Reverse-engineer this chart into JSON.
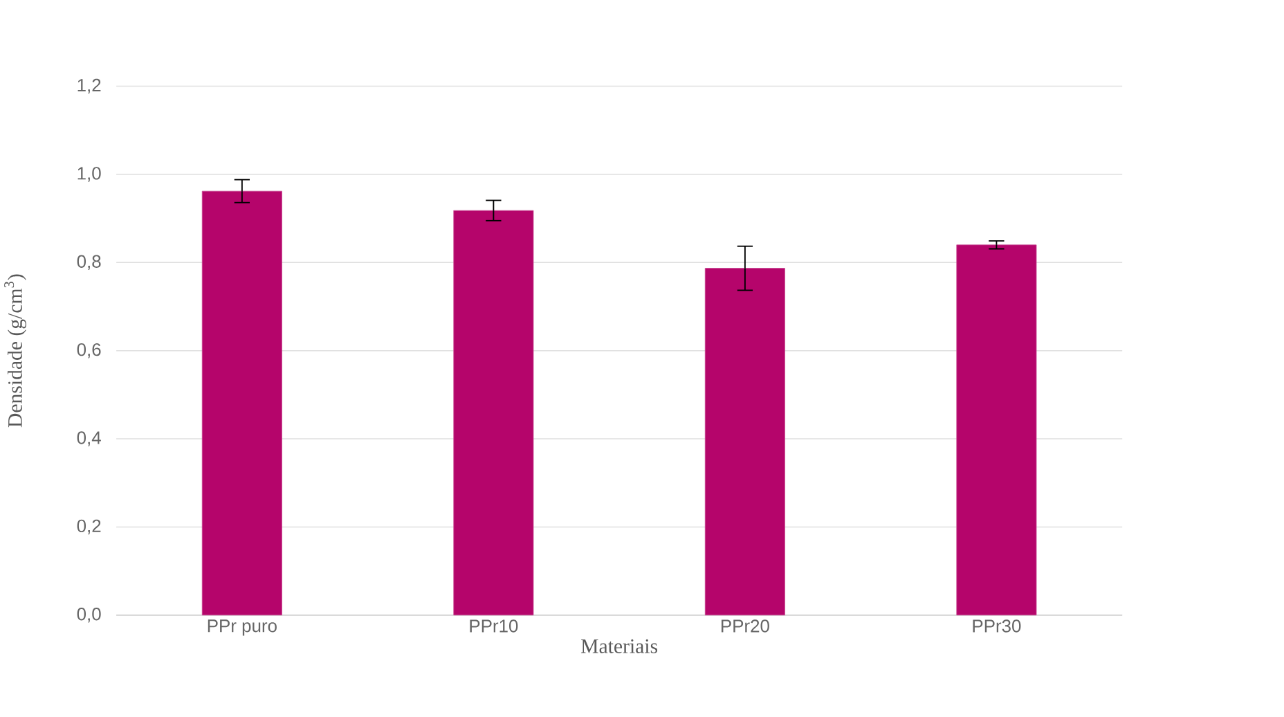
{
  "chart_data": {
    "type": "bar",
    "xlabel": "Materiais",
    "ylabel": "Densidade (g/cm$^{3}$)",
    "categories": [
      "PPr puro",
      "PPr10",
      "PPr20",
      "PPr30"
    ],
    "values": [
      0.962,
      0.918,
      0.787,
      0.84
    ],
    "errors": [
      0.026,
      0.023,
      0.05,
      0.009
    ],
    "color": "#b5056b",
    "ylim": [
      0,
      1.2
    ],
    "yticks": [
      {
        "value": 0,
        "label": "0,0"
      },
      {
        "value": 0.2,
        "label": "0,2"
      },
      {
        "value": 0.4,
        "label": "0,4"
      },
      {
        "value": 0.6,
        "label": "0,6"
      },
      {
        "value": 0.8,
        "label": "0,8"
      },
      {
        "value": 1.0,
        "label": "1,0"
      },
      {
        "value": 1.2,
        "label": "1,2"
      }
    ],
    "grid": "y"
  }
}
